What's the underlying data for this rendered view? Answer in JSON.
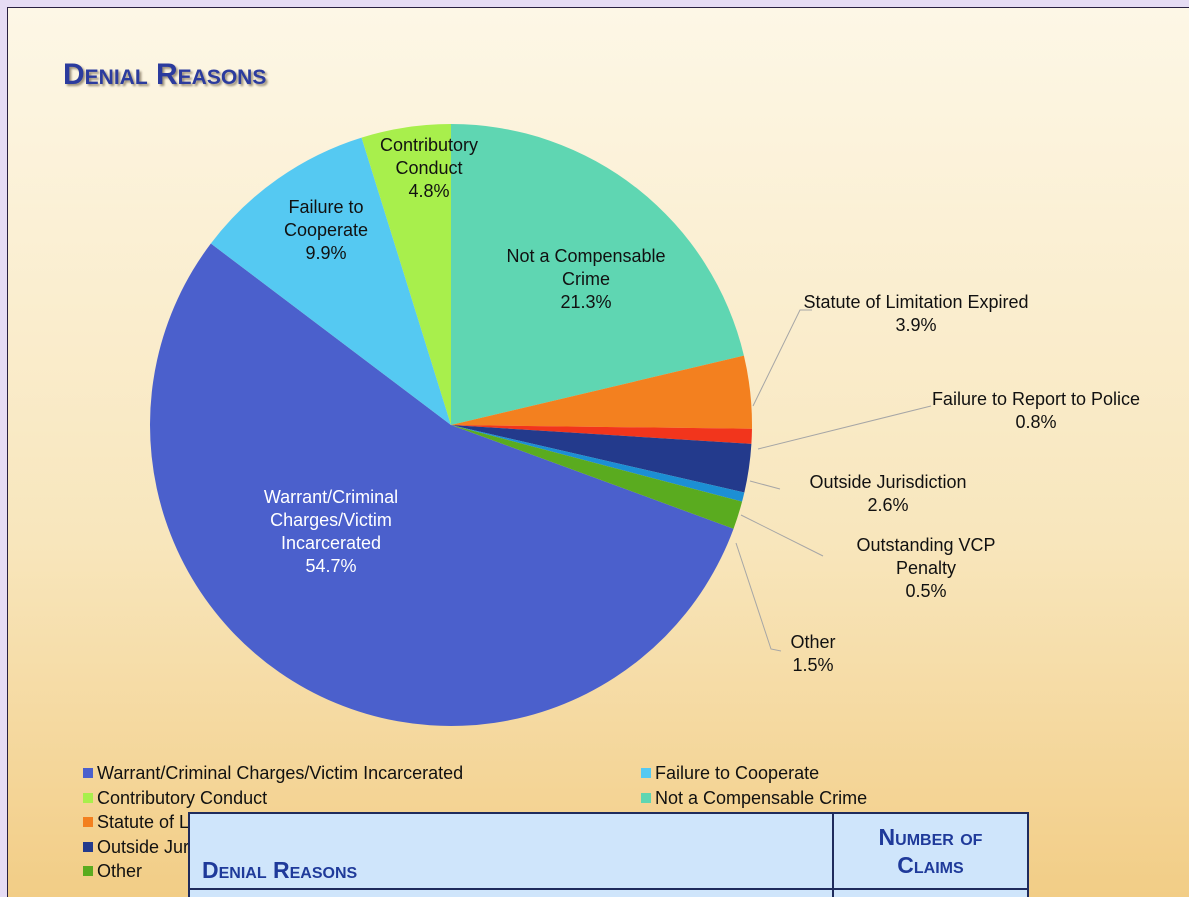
{
  "chart_data": {
    "type": "pie",
    "title": "Denial Reasons",
    "categories": [
      "Warrant/Criminal Charges/Victim Incarcerated",
      "Failure to Cooperate",
      "Contributory Conduct",
      "Not a Compensable Crime",
      "Statute of Limitation Expired",
      "Failure to Report to Police",
      "Outside Jurisdiction",
      "Outstanding VCP Penalty",
      "Other"
    ],
    "values": [
      54.7,
      9.9,
      4.8,
      21.3,
      3.9,
      0.8,
      2.6,
      0.5,
      1.5
    ],
    "value_labels": [
      "54.7%",
      "9.9%",
      "4.8%",
      "21.3%",
      "3.9%",
      "0.8%",
      "2.6%",
      "0.5%",
      "1.5%"
    ],
    "colors": [
      "#4b60cc",
      "#55c9f2",
      "#a8ef4c",
      "#5fd6b2",
      "#f3801f",
      "#f2351c",
      "#233a8c",
      "#1c8fd4",
      "#5aab1f"
    ],
    "legend": "bottom"
  },
  "table": {
    "headers": [
      "Denial Reasons",
      "Number of Claims"
    ]
  }
}
